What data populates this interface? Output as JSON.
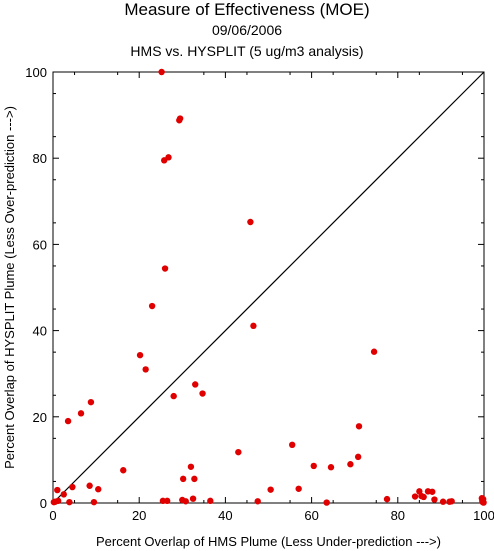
{
  "chart_data": {
    "type": "scatter",
    "title": "Measure of Effectiveness (MOE)",
    "date": "09/06/2006",
    "subtitle": "HMS vs. HYSPLIT  (5 ug/m3 analysis)",
    "xlabel": "Percent Overlap of HMS Plume (Less Under-prediction --->)",
    "ylabel": "Percent Overlap of HYSPLIT Plume (Less Over-prediction --->)",
    "xlim": [
      0,
      100
    ],
    "ylim": [
      0,
      100
    ],
    "xticks": [
      "0",
      "20",
      "40",
      "60",
      "80",
      "100"
    ],
    "yticks": [
      "0",
      "20",
      "40",
      "60",
      "80",
      "100"
    ],
    "grid": false,
    "reference_line": "y = x",
    "point_color": "#e00000",
    "line_color": "#000000",
    "series": [
      {
        "points": [
          [
            0.2,
            0.2
          ],
          [
            0.5,
            0.3
          ],
          [
            1.0,
            3.0
          ],
          [
            1.2,
            0.5
          ],
          [
            2.5,
            2.0
          ],
          [
            3.5,
            19.0
          ],
          [
            3.8,
            0.2
          ],
          [
            4.5,
            3.7
          ],
          [
            6.5,
            20.8
          ],
          [
            8.5,
            4.0
          ],
          [
            8.8,
            23.4
          ],
          [
            9.5,
            0.2
          ],
          [
            10.5,
            3.2
          ],
          [
            16.3,
            7.6
          ],
          [
            20.2,
            34.3
          ],
          [
            21.5,
            31.0
          ],
          [
            23.0,
            45.7
          ],
          [
            25.2,
            100.0
          ],
          [
            25.5,
            0.5
          ],
          [
            25.8,
            79.5
          ],
          [
            26.0,
            54.4
          ],
          [
            26.5,
            0.5
          ],
          [
            26.8,
            80.2
          ],
          [
            28.0,
            24.8
          ],
          [
            29.3,
            88.8
          ],
          [
            29.5,
            89.2
          ],
          [
            30.0,
            0.7
          ],
          [
            30.2,
            5.6
          ],
          [
            30.8,
            0.4
          ],
          [
            32.0,
            8.4
          ],
          [
            32.5,
            1.0
          ],
          [
            32.8,
            5.6
          ],
          [
            33.0,
            27.5
          ],
          [
            34.7,
            25.4
          ],
          [
            36.5,
            0.5
          ],
          [
            43.0,
            11.8
          ],
          [
            45.8,
            65.2
          ],
          [
            46.5,
            41.1
          ],
          [
            47.5,
            0.4
          ],
          [
            50.5,
            3.1
          ],
          [
            55.5,
            13.5
          ],
          [
            57.0,
            3.3
          ],
          [
            60.5,
            8.6
          ],
          [
            63.5,
            0.1
          ],
          [
            64.5,
            8.3
          ],
          [
            69.0,
            9.0
          ],
          [
            70.8,
            10.7
          ],
          [
            71.0,
            17.8
          ],
          [
            74.5,
            35.1
          ],
          [
            77.5,
            0.9
          ],
          [
            84.0,
            1.5
          ],
          [
            85.0,
            2.7
          ],
          [
            85.5,
            1.6
          ],
          [
            86.0,
            1.4
          ],
          [
            87.0,
            2.7
          ],
          [
            88.0,
            2.6
          ],
          [
            88.5,
            0.8
          ],
          [
            90.5,
            0.3
          ],
          [
            92.0,
            0.3
          ],
          [
            92.5,
            0.4
          ],
          [
            99.5,
            1.1
          ],
          [
            99.6,
            0.5
          ],
          [
            99.7,
            0.2
          ],
          [
            99.8,
            0.9
          ],
          [
            99.9,
            0.1
          ]
        ]
      }
    ]
  }
}
